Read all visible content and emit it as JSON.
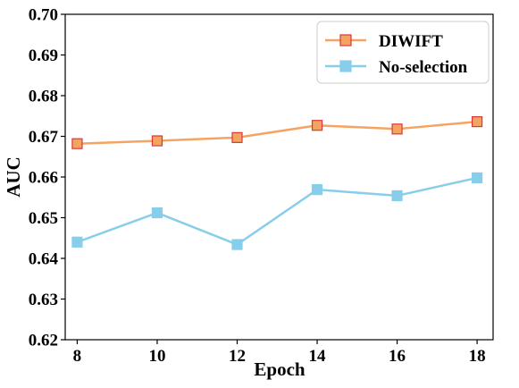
{
  "chart_data": {
    "type": "line",
    "xlabel": "Epoch",
    "ylabel": "AUC",
    "xlim": [
      7.7,
      18.4
    ],
    "ylim": [
      0.62,
      0.7
    ],
    "x_ticks": [
      "8",
      "10",
      "12",
      "14",
      "16",
      "18"
    ],
    "y_ticks": [
      "0.62",
      "0.63",
      "0.64",
      "0.65",
      "0.66",
      "0.67",
      "0.68",
      "0.69",
      "0.70"
    ],
    "grid": false,
    "legend_position": "top-right",
    "x": [
      8,
      10,
      12,
      14,
      16,
      18
    ],
    "series": [
      {
        "name": "DIWIFT",
        "values": [
          0.6682,
          0.6689,
          0.6697,
          0.6727,
          0.6718,
          0.6736
        ],
        "line_color": "#f4a460",
        "marker_fill": "#f4a460",
        "marker_edge": "#d9383a"
      },
      {
        "name": "No-selection",
        "values": [
          0.644,
          0.6512,
          0.6434,
          0.6569,
          0.6554,
          0.6598
        ],
        "line_color": "#87ceeb",
        "marker_fill": "#87ceeb",
        "marker_edge": "#87ceeb"
      }
    ]
  }
}
